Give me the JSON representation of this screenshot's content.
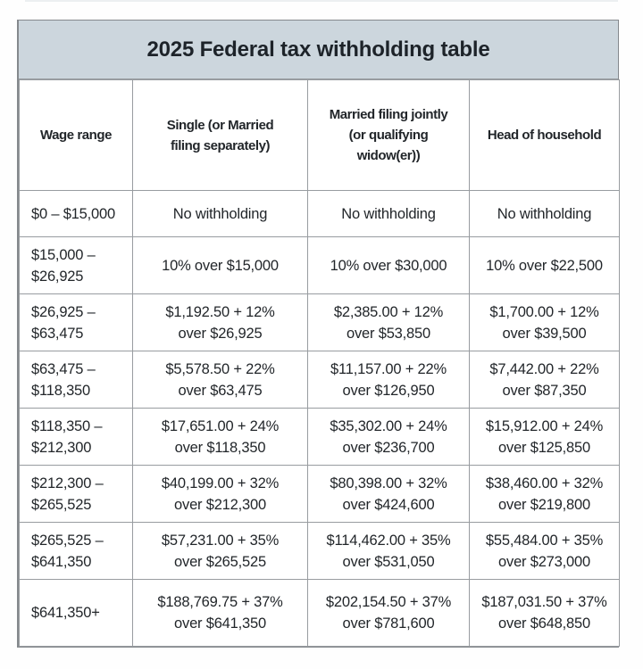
{
  "colors": {
    "page_bg": "#fefefe",
    "title_band_bg": "#ccd6dd",
    "border": "#989ca0",
    "text": "#22262a"
  },
  "chart_data": {
    "type": "table",
    "title": "2025 Federal tax withholding table",
    "columns": [
      "Wage range",
      "Single (or Married\nfiling separately)",
      "Married filing jointly\n(or qualifying\nwidow(er))",
      "Head of household"
    ],
    "rows": [
      [
        "$0 – $15,000",
        "No withholding",
        "No withholding",
        "No withholding"
      ],
      [
        "$15,000 –\n$26,925",
        "10% over $15,000",
        "10% over $30,000",
        "10% over $22,500"
      ],
      [
        "$26,925 –\n$63,475",
        "$1,192.50 + 12%\nover $26,925",
        "$2,385.00 + 12%\nover $53,850",
        "$1,700.00 + 12%\nover $39,500"
      ],
      [
        "$63,475 –\n$118,350",
        "$5,578.50 + 22%\nover $63,475",
        "$11,157.00 + 22%\nover $126,950",
        "$7,442.00 + 22%\nover $87,350"
      ],
      [
        "$118,350 –\n$212,300",
        "$17,651.00 + 24%\nover $118,350",
        "$35,302.00 + 24%\nover $236,700",
        "$15,912.00 + 24%\nover $125,850"
      ],
      [
        "$212,300 –\n$265,525",
        "$40,199.00 + 32%\nover $212,300",
        "$80,398.00 + 32%\nover $424,600",
        "$38,460.00 + 32%\nover $219,800"
      ],
      [
        "$265,525 –\n$641,350",
        "$57,231.00 + 35%\nover $265,525",
        "$114,462.00 + 35%\nover $531,050",
        "$55,484.00 + 35%\nover $273,000"
      ],
      [
        "$641,350+",
        "$188,769.75 + 37%\nover $641,350",
        "$202,154.50 + 37%\nover $781,600",
        "$187,031.50 + 37%\nover $648,850"
      ]
    ]
  }
}
